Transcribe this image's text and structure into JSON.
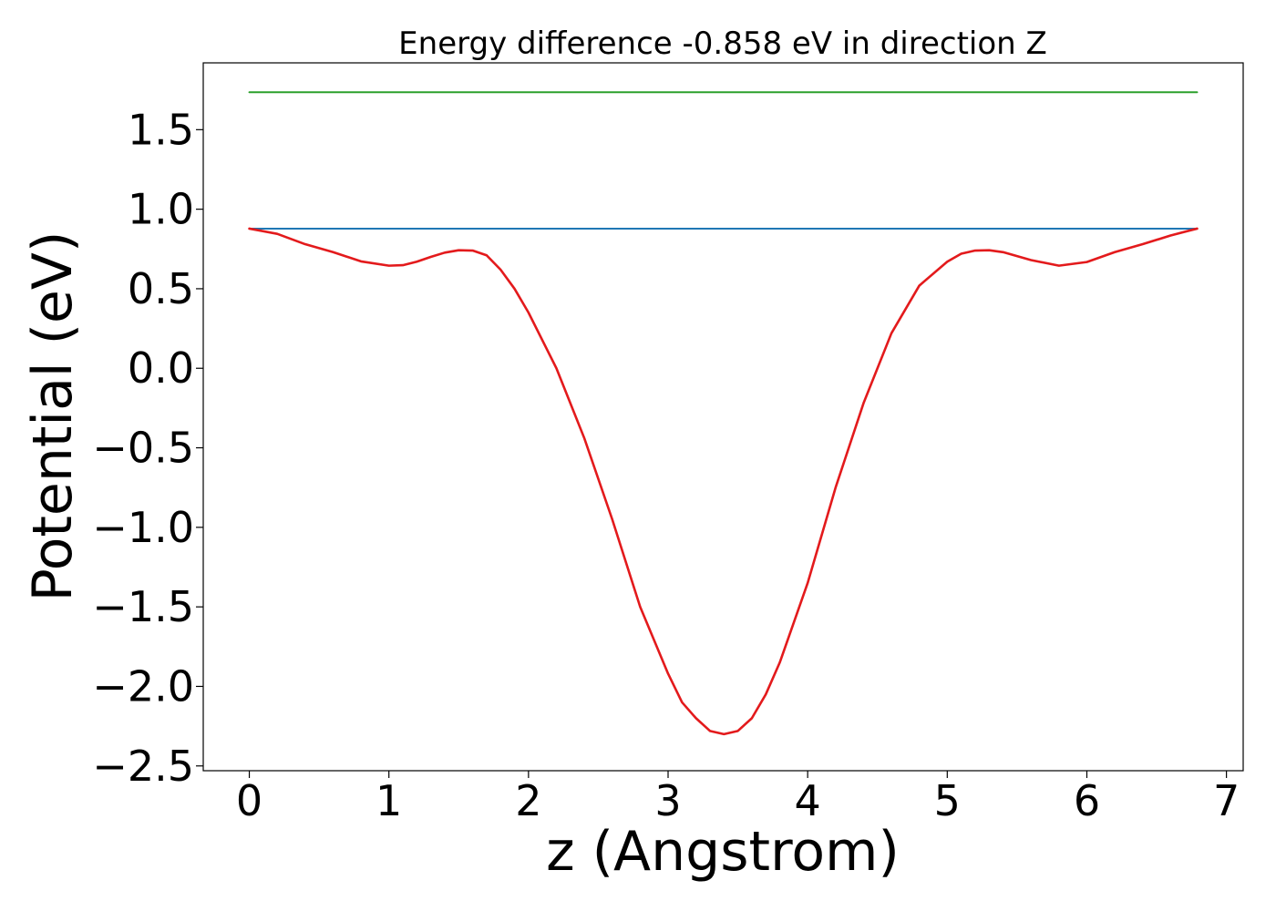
{
  "chart_data": {
    "type": "line",
    "title": "Energy difference -0.858 eV in direction Z",
    "xlabel": "z (Angstrom)",
    "ylabel": "Potential (eV)",
    "xlim": [
      -0.33,
      7.12
    ],
    "ylim": [
      -2.53,
      1.92
    ],
    "xticks": [
      0,
      1,
      2,
      3,
      4,
      5,
      6,
      7
    ],
    "yticks": [
      1.5,
      1.0,
      0.5,
      0.0,
      -0.5,
      -1.0,
      -1.5,
      -2.0,
      -2.5
    ],
    "xtick_labels": [
      "0",
      "1",
      "2",
      "3",
      "4",
      "5",
      "6",
      "7"
    ],
    "ytick_labels": [
      "1.5",
      "1.0",
      "0.5",
      "0.0",
      "−0.5",
      "−1.0",
      "−1.5",
      "−2.0",
      "−2.5"
    ],
    "grid": false,
    "legend": "none",
    "series": [
      {
        "color": "#2ca02c",
        "x": [
          0.0,
          6.79
        ],
        "y": [
          1.735,
          1.735
        ]
      },
      {
        "color": "#1f77b4",
        "x": [
          0.0,
          6.79
        ],
        "y": [
          0.878,
          0.878
        ]
      },
      {
        "color": "#e31a1c",
        "x": [
          0.0,
          0.2,
          0.4,
          0.6,
          0.8,
          1.0,
          1.1,
          1.2,
          1.3,
          1.4,
          1.5,
          1.6,
          1.7,
          1.8,
          1.9,
          2.0,
          2.2,
          2.4,
          2.6,
          2.8,
          3.0,
          3.1,
          3.2,
          3.3,
          3.4,
          3.5,
          3.6,
          3.7,
          3.8,
          4.0,
          4.2,
          4.4,
          4.6,
          4.8,
          5.0,
          5.1,
          5.2,
          5.3,
          5.4,
          5.5,
          5.6,
          5.8,
          6.0,
          6.2,
          6.4,
          6.6,
          6.79
        ],
        "y": [
          0.878,
          0.845,
          0.78,
          0.73,
          0.672,
          0.645,
          0.648,
          0.67,
          0.7,
          0.727,
          0.742,
          0.74,
          0.71,
          0.62,
          0.5,
          0.35,
          0.0,
          -0.44,
          -0.95,
          -1.5,
          -1.92,
          -2.1,
          -2.2,
          -2.28,
          -2.3,
          -2.28,
          -2.2,
          -2.05,
          -1.85,
          -1.35,
          -0.75,
          -0.22,
          0.22,
          0.52,
          0.67,
          0.72,
          0.74,
          0.742,
          0.73,
          0.705,
          0.68,
          0.645,
          0.668,
          0.73,
          0.78,
          0.835,
          0.878
        ]
      }
    ]
  }
}
